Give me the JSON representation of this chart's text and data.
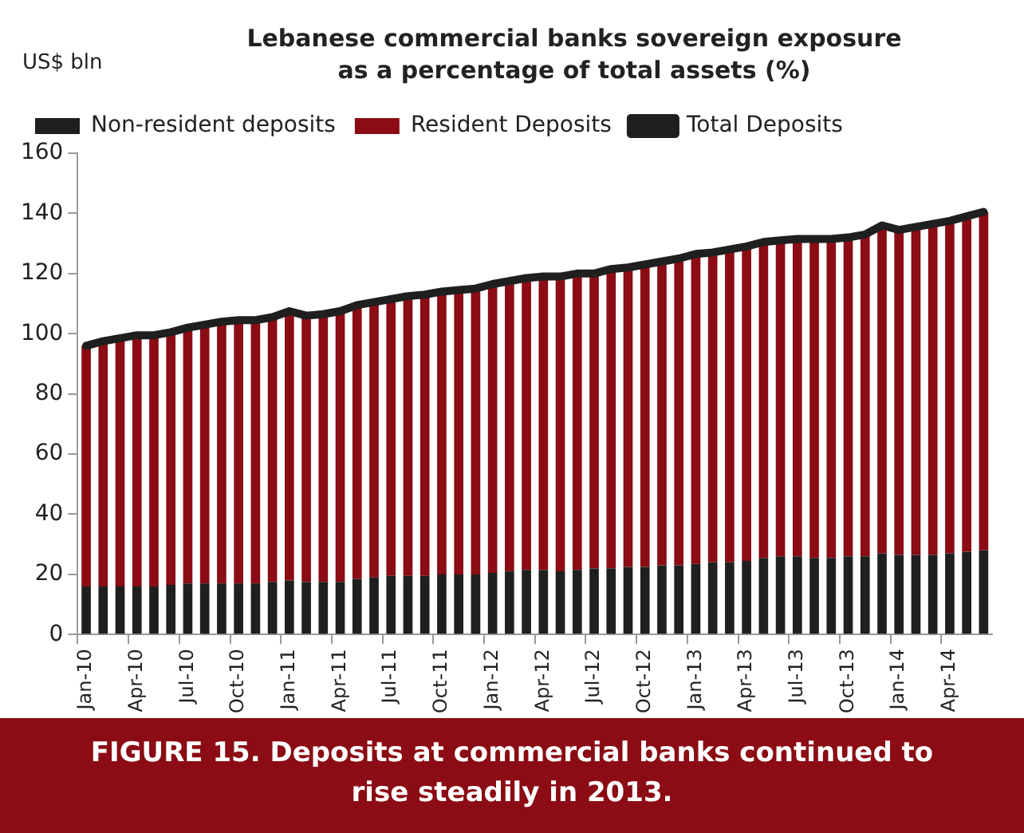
{
  "chart_data": {
    "type": "bar",
    "title": "Lebanese commercial banks sovereign exposure as a percentage of total assets (%)",
    "ylabel": "US$ bln",
    "categories": [
      "Jan-10",
      null,
      null,
      "Apr-10",
      null,
      null,
      "Jul-10",
      null,
      null,
      "Oct-10",
      null,
      null,
      "Jan-11",
      null,
      null,
      "Apr-11",
      null,
      null,
      "Jul-11",
      null,
      null,
      "Oct-11",
      null,
      null,
      "Jan-12",
      null,
      null,
      "Apr-12",
      null,
      null,
      "Jul-12",
      null,
      null,
      "Oct-12",
      null,
      null,
      "Jan-13",
      null,
      null,
      "Apr-13",
      null,
      null,
      "Jul-13",
      null,
      null,
      "Oct-13",
      null,
      null,
      "Jan-14",
      null,
      null,
      "Apr-14",
      null,
      null
    ],
    "series": [
      {
        "name": "Non-resident deposits",
        "color": "#1f1f1f",
        "values": [
          16,
          16,
          16,
          16,
          16,
          16.5,
          17,
          17,
          17,
          17,
          17,
          17.5,
          18,
          17.5,
          17.5,
          17.5,
          18.5,
          19,
          19.5,
          19.5,
          19.5,
          20,
          20,
          20,
          20.5,
          21,
          21.5,
          21.5,
          21,
          21.5,
          22,
          22,
          22.5,
          22.5,
          23,
          23,
          23.5,
          24,
          24,
          24.5,
          25.5,
          26,
          26,
          25.5,
          25.5,
          26,
          26,
          27,
          26.5,
          26.5,
          26.5,
          27,
          27.5,
          28
        ]
      },
      {
        "name": "Resident Deposits",
        "color": "#8b0c14",
        "values": [
          80,
          81.5,
          82.5,
          83.5,
          83.5,
          84,
          85,
          86,
          87,
          87.5,
          87.5,
          88,
          89.5,
          88.5,
          89,
          90,
          91,
          91.5,
          92,
          93,
          93.5,
          94,
          94.5,
          95,
          96,
          96.5,
          97,
          97.5,
          98,
          98.5,
          98,
          99.5,
          99.5,
          100.5,
          101,
          102,
          103,
          103,
          104,
          104.5,
          105,
          105,
          105.5,
          106,
          106,
          106,
          107,
          109,
          108,
          109,
          110,
          110.5,
          111.5,
          112.5
        ]
      },
      {
        "name": "Total Deposits",
        "type": "line",
        "color": "#1f1f1f",
        "values": [
          96,
          97.5,
          98.5,
          99.5,
          99.5,
          100.5,
          102,
          103,
          104,
          104.5,
          104.5,
          105.5,
          107.5,
          106,
          106.5,
          107.5,
          109.5,
          110.5,
          111.5,
          112.5,
          113,
          114,
          114.5,
          115,
          116.5,
          117.5,
          118.5,
          119,
          119,
          120,
          120,
          121.5,
          122,
          123,
          124,
          125,
          126.5,
          127,
          128,
          129,
          130.5,
          131,
          131.5,
          131.5,
          131.5,
          132,
          133,
          136,
          134.5,
          135.5,
          136.5,
          137.5,
          139,
          140.5
        ]
      }
    ],
    "stacked": true,
    "ylim": [
      0,
      160
    ],
    "yticks": [
      0,
      20,
      40,
      60,
      80,
      100,
      120,
      140,
      160
    ],
    "grid": false,
    "legend": "top left",
    "marker": "none",
    "annotations": [
      "FIGURE 15. Deposits at commercial banks continued to rise steadily in 2013."
    ]
  }
}
